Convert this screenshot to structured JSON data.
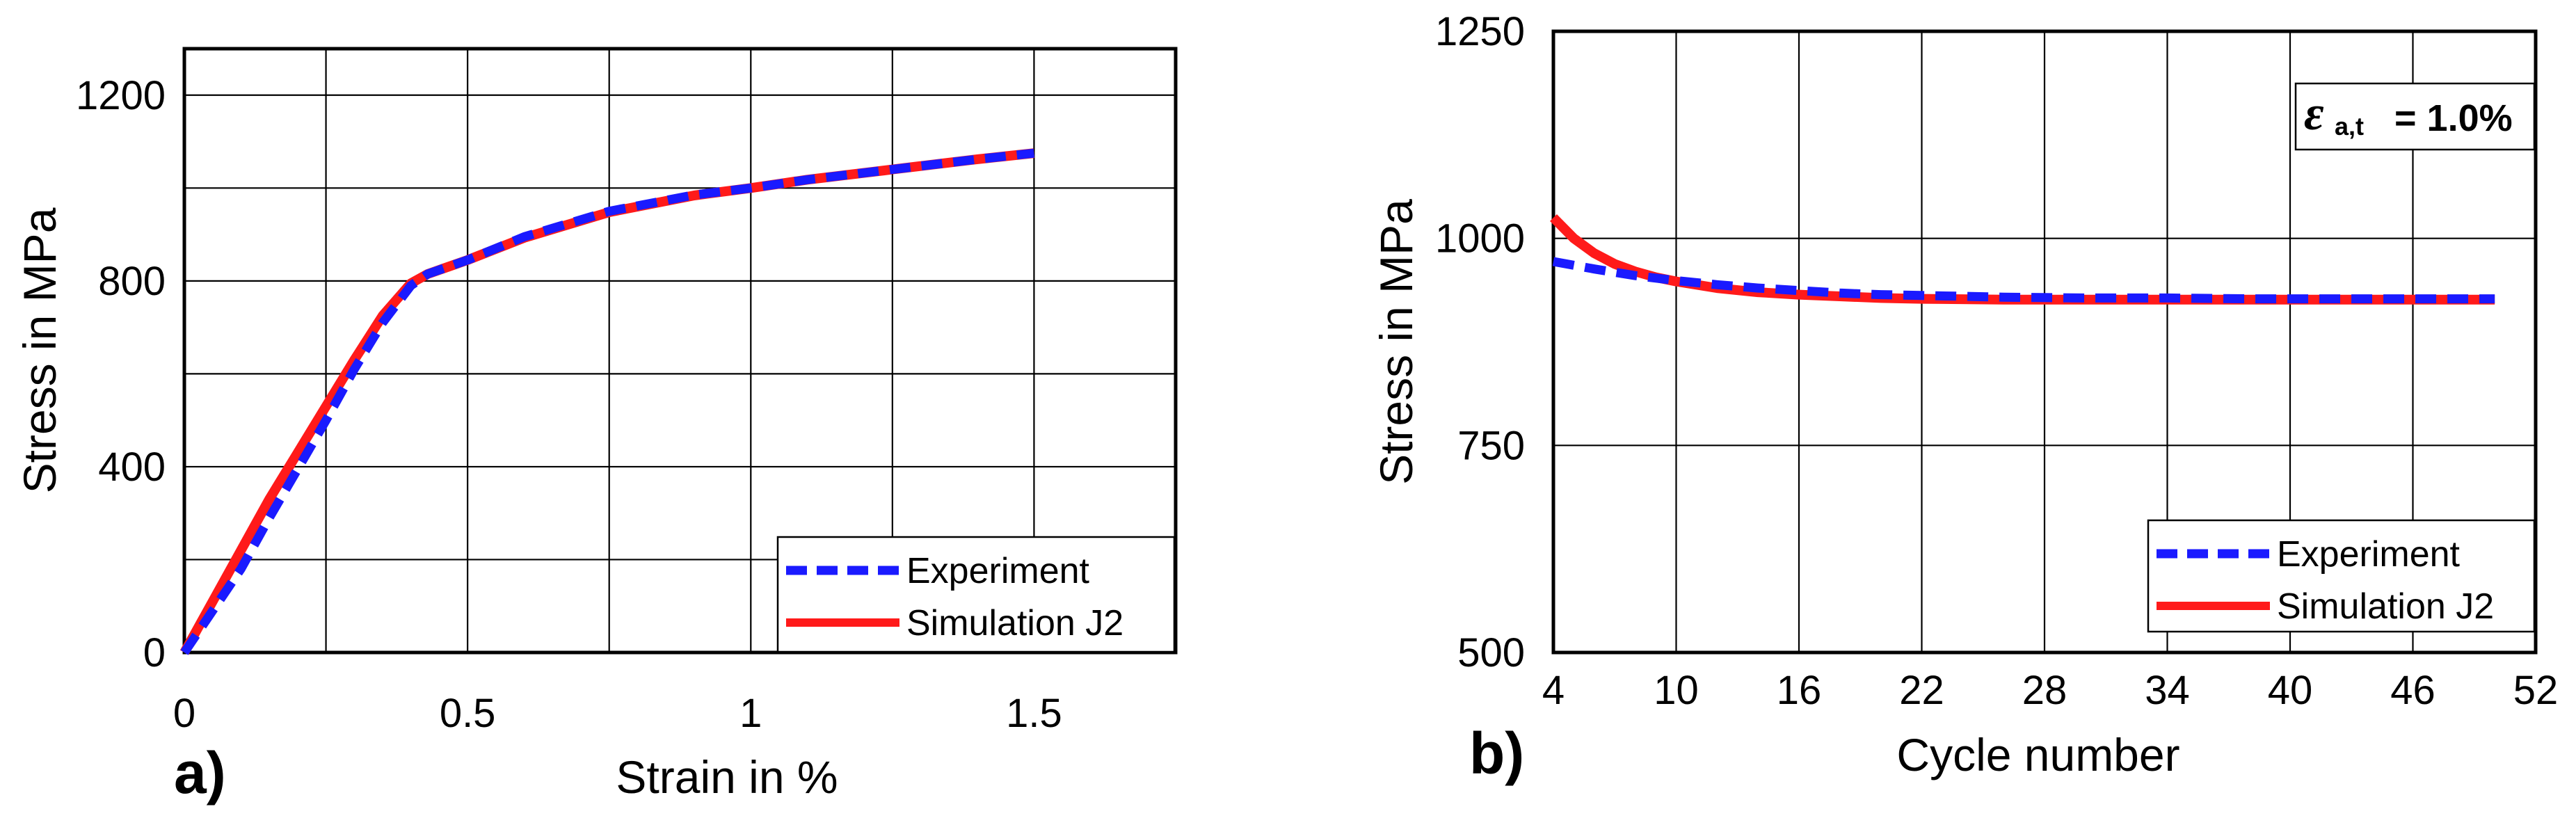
{
  "colors": {
    "experiment": "#1a1aff",
    "simulation": "#ff1a1a",
    "grid": "#000000"
  },
  "chart_data": [
    {
      "id": "a",
      "panel_label": "a)",
      "type": "line",
      "xlabel": "Strain in %",
      "ylabel": "Stress in MPa",
      "xlim": [
        0,
        1.75
      ],
      "ylim": [
        0,
        1300
      ],
      "xticks": [
        0,
        0.5,
        1,
        1.5
      ],
      "xtick_labels": [
        "0",
        "0.5",
        "1",
        "1.5"
      ],
      "xgrid": [
        0,
        0.25,
        0.5,
        0.75,
        1,
        1.25,
        1.5
      ],
      "yticks": [
        0,
        400,
        800,
        1200
      ],
      "ytick_labels": [
        "0",
        "400",
        "800",
        "1200"
      ],
      "ygrid": [
        0,
        200,
        400,
        600,
        800,
        1000,
        1200
      ],
      "grid": true,
      "legend_position": "bottom-right",
      "series": [
        {
          "name": "Experiment",
          "style": "dashed",
          "x": [
            0,
            0.05,
            0.1,
            0.15,
            0.2,
            0.25,
            0.3,
            0.35,
            0.4,
            0.43,
            0.5,
            0.6,
            0.75,
            0.9,
            1.0,
            1.1,
            1.25,
            1.4,
            1.5
          ],
          "y": [
            0,
            90,
            180,
            290,
            395,
            500,
            610,
            710,
            790,
            815,
            845,
            895,
            950,
            985,
            1000,
            1018,
            1040,
            1062,
            1075
          ]
        },
        {
          "name": "Simulation J2",
          "style": "solid",
          "x": [
            0,
            0.05,
            0.1,
            0.15,
            0.2,
            0.25,
            0.3,
            0.35,
            0.4,
            0.43,
            0.5,
            0.6,
            0.75,
            0.9,
            1.0,
            1.1,
            1.25,
            1.4,
            1.5
          ],
          "y": [
            0,
            110,
            220,
            330,
            430,
            530,
            630,
            725,
            795,
            815,
            845,
            893,
            948,
            984,
            1000,
            1018,
            1040,
            1062,
            1075
          ]
        }
      ]
    },
    {
      "id": "b",
      "panel_label": "b)",
      "type": "line",
      "xlabel": "Cycle number",
      "ylabel": "Stress in MPa",
      "xlim": [
        4,
        52
      ],
      "ylim": [
        500,
        1250
      ],
      "xticks": [
        4,
        10,
        16,
        22,
        28,
        34,
        40,
        46,
        52
      ],
      "xtick_labels": [
        "4",
        "10",
        "16",
        "22",
        "28",
        "34",
        "40",
        "46",
        "52"
      ],
      "xgrid": [
        4,
        10,
        16,
        22,
        28,
        34,
        40,
        46,
        52
      ],
      "yticks": [
        500,
        750,
        1000,
        1250
      ],
      "ytick_labels": [
        "500",
        "750",
        "1000",
        "1250"
      ],
      "ygrid": [
        500,
        750,
        1000,
        1250
      ],
      "grid": true,
      "legend_position": "bottom-right",
      "annotation": {
        "symbol": "ε",
        "subscript": "a,t",
        "text": "= 1.0%"
      },
      "series": [
        {
          "name": "Experiment",
          "style": "dashed",
          "x": [
            4,
            6,
            8,
            10,
            12,
            14,
            16,
            18,
            20,
            22,
            26,
            30,
            34,
            38,
            42,
            46,
            50
          ],
          "y": [
            972,
            963,
            955,
            949,
            944,
            940,
            937,
            934,
            932,
            931,
            929,
            928,
            928,
            927,
            927,
            927,
            927
          ]
        },
        {
          "name": "Simulation J2",
          "style": "solid",
          "x": [
            4,
            5,
            6,
            7,
            8,
            9,
            10,
            12,
            14,
            16,
            18,
            20,
            22,
            26,
            30,
            34,
            38,
            42,
            46,
            50
          ],
          "y": [
            1025,
            1000,
            982,
            969,
            960,
            953,
            948,
            940,
            935,
            932,
            930,
            928,
            927,
            926,
            926,
            926,
            926,
            926,
            926,
            926
          ]
        }
      ]
    }
  ]
}
